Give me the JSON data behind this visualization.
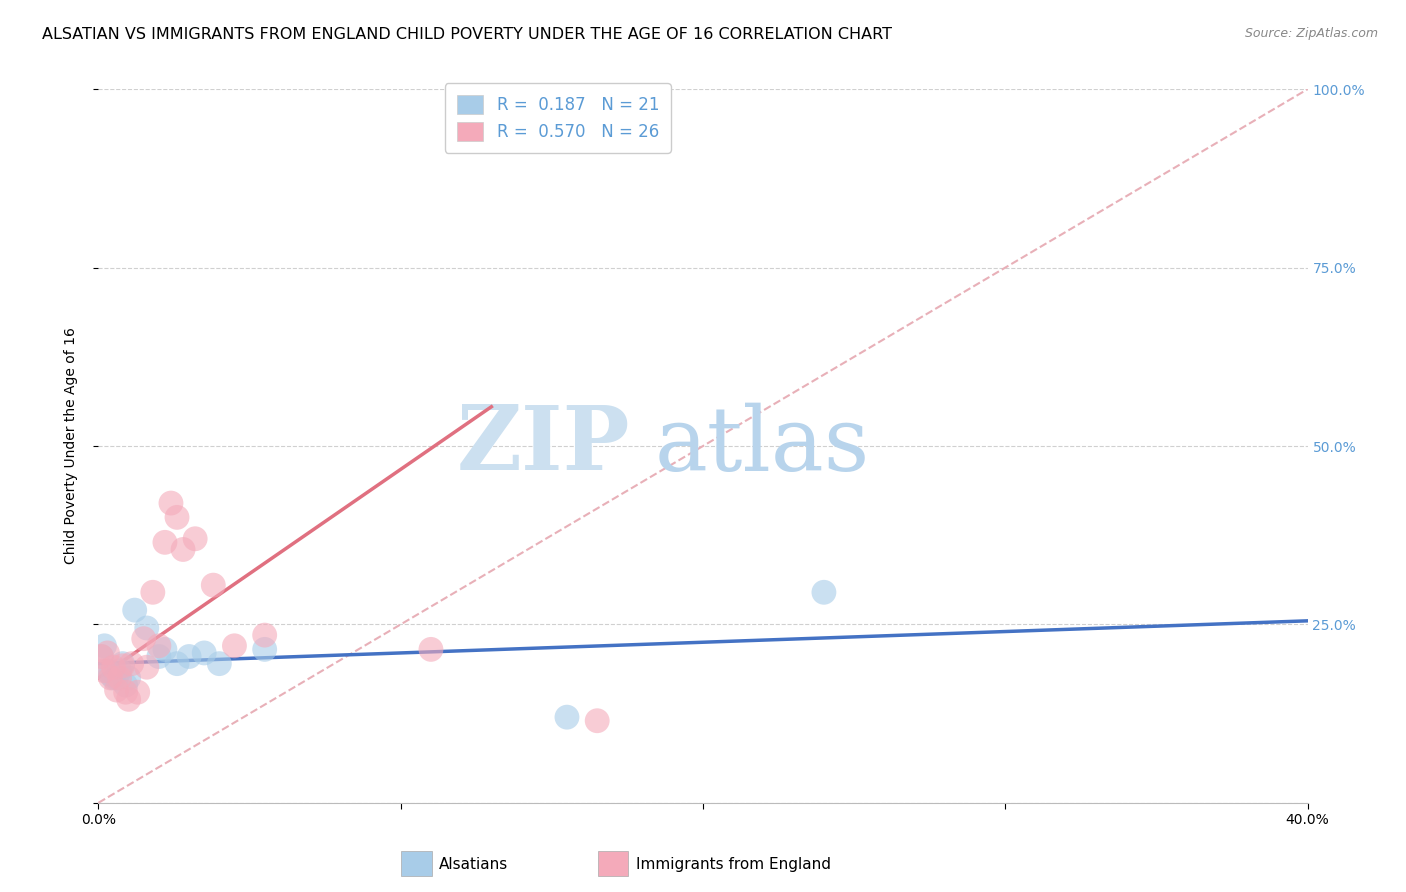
{
  "title": "ALSATIAN VS IMMIGRANTS FROM ENGLAND CHILD POVERTY UNDER THE AGE OF 16 CORRELATION CHART",
  "source": "Source: ZipAtlas.com",
  "ylabel": "Child Poverty Under the Age of 16",
  "xlim": [
    0.0,
    0.4
  ],
  "ylim": [
    0.0,
    1.0
  ],
  "legend_label1": "Alsatians",
  "legend_label2": "Immigrants from England",
  "r1": "0.187",
  "n1": "21",
  "r2": "0.570",
  "n2": "26",
  "color_blue": "#a8cce8",
  "color_pink": "#f4aaba",
  "color_line_blue": "#4472c4",
  "color_line_pink": "#e07080",
  "color_diag": "#e8b0b8",
  "watermark_zip_color": "#cce0f0",
  "watermark_atlas_color": "#b8d4ec",
  "blue_points": [
    [
      0.001,
      0.205
    ],
    [
      0.002,
      0.22
    ],
    [
      0.003,
      0.185
    ],
    [
      0.004,
      0.18
    ],
    [
      0.005,
      0.175
    ],
    [
      0.006,
      0.175
    ],
    [
      0.007,
      0.185
    ],
    [
      0.008,
      0.195
    ],
    [
      0.009,
      0.165
    ],
    [
      0.01,
      0.175
    ],
    [
      0.012,
      0.27
    ],
    [
      0.016,
      0.245
    ],
    [
      0.02,
      0.205
    ],
    [
      0.022,
      0.215
    ],
    [
      0.026,
      0.195
    ],
    [
      0.03,
      0.205
    ],
    [
      0.035,
      0.21
    ],
    [
      0.04,
      0.195
    ],
    [
      0.055,
      0.215
    ],
    [
      0.24,
      0.295
    ],
    [
      0.155,
      0.12
    ]
  ],
  "pink_points": [
    [
      0.001,
      0.205
    ],
    [
      0.002,
      0.185
    ],
    [
      0.003,
      0.21
    ],
    [
      0.004,
      0.175
    ],
    [
      0.005,
      0.19
    ],
    [
      0.006,
      0.158
    ],
    [
      0.007,
      0.175
    ],
    [
      0.008,
      0.192
    ],
    [
      0.009,
      0.155
    ],
    [
      0.01,
      0.145
    ],
    [
      0.011,
      0.195
    ],
    [
      0.013,
      0.155
    ],
    [
      0.015,
      0.23
    ],
    [
      0.016,
      0.19
    ],
    [
      0.018,
      0.295
    ],
    [
      0.02,
      0.22
    ],
    [
      0.022,
      0.365
    ],
    [
      0.024,
      0.42
    ],
    [
      0.026,
      0.4
    ],
    [
      0.028,
      0.355
    ],
    [
      0.032,
      0.37
    ],
    [
      0.038,
      0.305
    ],
    [
      0.045,
      0.22
    ],
    [
      0.055,
      0.235
    ],
    [
      0.11,
      0.215
    ],
    [
      0.165,
      0.115
    ]
  ],
  "blue_line_x": [
    0.0,
    0.4
  ],
  "blue_line_y": [
    0.195,
    0.255
  ],
  "pink_line_x": [
    0.0,
    0.13
  ],
  "pink_line_y": [
    0.175,
    0.555
  ],
  "diag_line_x": [
    0.0,
    0.4
  ],
  "diag_line_y": [
    0.0,
    1.0
  ],
  "background": "#ffffff",
  "grid_color": "#d0d0d0",
  "title_fontsize": 11.5,
  "tick_fontsize": 10,
  "right_tick_color": "#5b9bd5"
}
